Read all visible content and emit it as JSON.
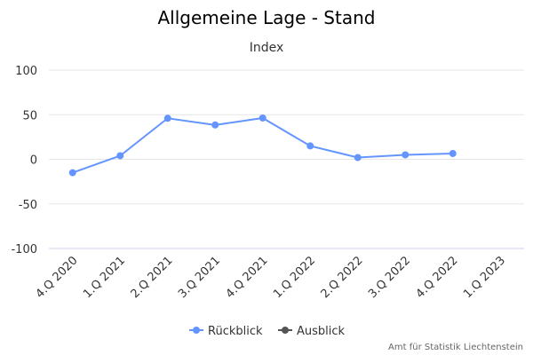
{
  "chart_data": {
    "type": "line",
    "title": "Allgemeine Lage - Stand",
    "subtitle": "Index",
    "categories": [
      "4.Q 2020",
      "1.Q 2021",
      "2.Q 2021",
      "3.Q 2021",
      "4.Q 2021",
      "1.Q 2022",
      "2.Q 2022",
      "3.Q 2022",
      "4.Q 2022",
      "1.Q 2023"
    ],
    "yticks": [
      100,
      50,
      0,
      -50,
      -100
    ],
    "ylim": [
      -100,
      100
    ],
    "grid": true,
    "legend_placement": "bottom",
    "series": [
      {
        "name": "Rückblick",
        "color": "#6495ff",
        "values": [
          -15,
          4,
          46,
          38.5,
          46.3,
          15,
          2,
          5,
          6.5,
          null
        ]
      },
      {
        "name": "Ausblick",
        "color": "#555555",
        "values": [
          null,
          null,
          null,
          null,
          null,
          null,
          null,
          null,
          null,
          null
        ]
      }
    ],
    "credit": "Amt für Statistik Liechtenstein"
  }
}
